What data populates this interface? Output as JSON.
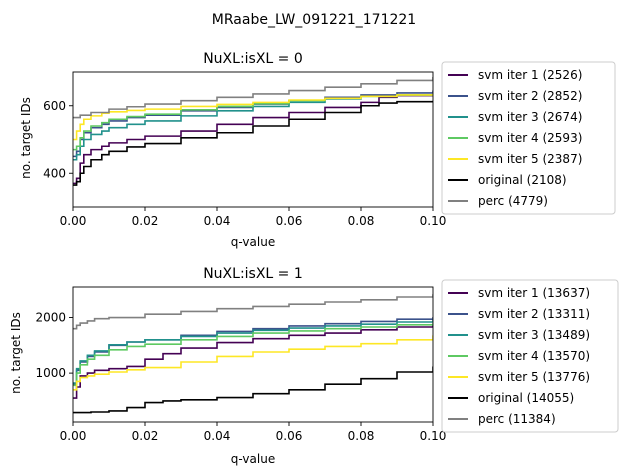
{
  "suptitle": "MRaabe_LW_091221_171221",
  "colors": {
    "svm_iter_1": "#440154",
    "svm_iter_2": "#3b528b",
    "svm_iter_3": "#21918c",
    "svm_iter_4": "#5ec962",
    "svm_iter_5": "#fde725",
    "original": "#000000",
    "perc": "#808080"
  },
  "chart_data": [
    {
      "type": "line",
      "title": "NuXL:isXL = 0",
      "xlabel": "q-value",
      "ylabel": "no. target IDs",
      "xlim": [
        0,
        0.1
      ],
      "ylim": [
        300,
        700
      ],
      "xticks": [
        "0.00",
        "0.02",
        "0.04",
        "0.06",
        "0.08",
        "0.10"
      ],
      "xtick_values": [
        0,
        0.02,
        0.04,
        0.06,
        0.08,
        0.1
      ],
      "yticks": [
        "400",
        "600"
      ],
      "ytick_values": [
        400,
        600
      ],
      "legend_position": "outside right",
      "series": [
        {
          "name": "svm iter 1 (2526)",
          "color_key": "svm_iter_1",
          "x": [
            0,
            0.001,
            0.002,
            0.003,
            0.005,
            0.008,
            0.01,
            0.015,
            0.02,
            0.03,
            0.04,
            0.05,
            0.06,
            0.07,
            0.08,
            0.085,
            0.09,
            0.1
          ],
          "y": [
            370,
            385,
            430,
            455,
            470,
            480,
            490,
            500,
            510,
            525,
            545,
            565,
            580,
            595,
            610,
            625,
            630,
            635
          ]
        },
        {
          "name": "svm iter 2 (2852)",
          "color_key": "svm_iter_2",
          "x": [
            0,
            0.001,
            0.002,
            0.003,
            0.005,
            0.008,
            0.01,
            0.015,
            0.02,
            0.03,
            0.04,
            0.05,
            0.06,
            0.07,
            0.08,
            0.09,
            0.1
          ],
          "y": [
            450,
            465,
            500,
            520,
            535,
            545,
            555,
            565,
            572,
            585,
            595,
            605,
            615,
            625,
            632,
            638,
            645
          ]
        },
        {
          "name": "svm iter 3 (2674)",
          "color_key": "svm_iter_3",
          "x": [
            0,
            0.001,
            0.002,
            0.003,
            0.005,
            0.008,
            0.01,
            0.015,
            0.02,
            0.03,
            0.04,
            0.05,
            0.06,
            0.07,
            0.08,
            0.09,
            0.1
          ],
          "y": [
            440,
            455,
            480,
            500,
            515,
            525,
            535,
            545,
            555,
            570,
            585,
            598,
            610,
            620,
            628,
            632,
            635
          ]
        },
        {
          "name": "svm iter 4 (2593)",
          "color_key": "svm_iter_4",
          "x": [
            0,
            0.001,
            0.002,
            0.003,
            0.005,
            0.008,
            0.01,
            0.015,
            0.02,
            0.03,
            0.04,
            0.05,
            0.06,
            0.07,
            0.08,
            0.09,
            0.1
          ],
          "y": [
            470,
            480,
            505,
            525,
            540,
            550,
            560,
            568,
            575,
            588,
            598,
            606,
            615,
            622,
            628,
            632,
            635
          ]
        },
        {
          "name": "svm iter 5 (2387)",
          "color_key": "svm_iter_5",
          "x": [
            0,
            0.001,
            0.002,
            0.003,
            0.005,
            0.008,
            0.01,
            0.015,
            0.02,
            0.03,
            0.04,
            0.05,
            0.06,
            0.07,
            0.08,
            0.09,
            0.1
          ],
          "y": [
            500,
            525,
            545,
            560,
            570,
            578,
            582,
            586,
            590,
            598,
            604,
            610,
            617,
            622,
            628,
            632,
            636
          ]
        },
        {
          "name": "original (2108)",
          "color_key": "original",
          "x": [
            0,
            0.001,
            0.002,
            0.003,
            0.005,
            0.008,
            0.01,
            0.015,
            0.02,
            0.03,
            0.04,
            0.05,
            0.06,
            0.07,
            0.08,
            0.085,
            0.09,
            0.1
          ],
          "y": [
            365,
            375,
            400,
            420,
            440,
            455,
            465,
            478,
            488,
            505,
            520,
            540,
            560,
            580,
            600,
            608,
            612,
            615
          ]
        },
        {
          "name": "perc (4779)",
          "color_key": "perc",
          "x": [
            0,
            0.002,
            0.005,
            0.01,
            0.015,
            0.02,
            0.03,
            0.04,
            0.05,
            0.06,
            0.07,
            0.08,
            0.09,
            0.1
          ],
          "y": [
            565,
            572,
            580,
            590,
            597,
            605,
            615,
            625,
            635,
            645,
            655,
            665,
            675,
            685
          ]
        }
      ]
    },
    {
      "type": "line",
      "title": "NuXL:isXL = 1",
      "xlabel": "q-value",
      "ylabel": "no. target IDs",
      "xlim": [
        0,
        0.1
      ],
      "ylim": [
        120,
        2550
      ],
      "xticks": [
        "0.00",
        "0.02",
        "0.04",
        "0.06",
        "0.08",
        "0.10"
      ],
      "xtick_values": [
        0,
        0.02,
        0.04,
        0.06,
        0.08,
        0.1
      ],
      "yticks": [
        "1000",
        "2000"
      ],
      "ytick_values": [
        1000,
        2000
      ],
      "legend_position": "outside right",
      "series": [
        {
          "name": "svm iter 1 (13637)",
          "color_key": "svm_iter_1",
          "x": [
            0,
            0.001,
            0.002,
            0.004,
            0.006,
            0.01,
            0.015,
            0.02,
            0.025,
            0.03,
            0.04,
            0.05,
            0.06,
            0.07,
            0.08,
            0.09,
            0.1
          ],
          "y": [
            550,
            750,
            950,
            1000,
            1050,
            1080,
            1120,
            1250,
            1350,
            1450,
            1550,
            1620,
            1680,
            1720,
            1780,
            1830,
            1880
          ]
        },
        {
          "name": "svm iter 2 (13311)",
          "color_key": "svm_iter_2",
          "x": [
            0,
            0.001,
            0.002,
            0.004,
            0.006,
            0.01,
            0.015,
            0.02,
            0.03,
            0.04,
            0.05,
            0.06,
            0.07,
            0.08,
            0.09,
            0.1
          ],
          "y": [
            800,
            1050,
            1200,
            1300,
            1380,
            1500,
            1560,
            1600,
            1680,
            1750,
            1800,
            1850,
            1890,
            1930,
            1970,
            2010
          ]
        },
        {
          "name": "svm iter 3 (13489)",
          "color_key": "svm_iter_3",
          "x": [
            0,
            0.001,
            0.002,
            0.004,
            0.006,
            0.01,
            0.015,
            0.02,
            0.03,
            0.04,
            0.05,
            0.06,
            0.07,
            0.08,
            0.09,
            0.1
          ],
          "y": [
            820,
            1080,
            1220,
            1320,
            1400,
            1510,
            1560,
            1600,
            1660,
            1720,
            1770,
            1810,
            1850,
            1880,
            1920,
            1960
          ]
        },
        {
          "name": "svm iter 4 (13570)",
          "color_key": "svm_iter_4",
          "x": [
            0,
            0.001,
            0.002,
            0.004,
            0.006,
            0.01,
            0.015,
            0.02,
            0.03,
            0.04,
            0.05,
            0.06,
            0.07,
            0.08,
            0.09,
            0.1
          ],
          "y": [
            780,
            1000,
            1150,
            1250,
            1320,
            1420,
            1480,
            1520,
            1600,
            1660,
            1720,
            1760,
            1800,
            1830,
            1870,
            1900
          ]
        },
        {
          "name": "svm iter 5 (13776)",
          "color_key": "svm_iter_5",
          "x": [
            0,
            0.001,
            0.002,
            0.004,
            0.006,
            0.01,
            0.015,
            0.02,
            0.03,
            0.04,
            0.05,
            0.06,
            0.07,
            0.08,
            0.09,
            0.1
          ],
          "y": [
            700,
            850,
            920,
            950,
            980,
            1020,
            1060,
            1100,
            1200,
            1300,
            1380,
            1430,
            1480,
            1530,
            1600,
            1680
          ]
        },
        {
          "name": "original (14055)",
          "color_key": "original",
          "x": [
            0,
            0.005,
            0.01,
            0.015,
            0.02,
            0.025,
            0.03,
            0.04,
            0.05,
            0.06,
            0.07,
            0.08,
            0.09,
            0.1
          ],
          "y": [
            290,
            300,
            320,
            380,
            470,
            500,
            520,
            560,
            630,
            700,
            800,
            900,
            1020,
            1120
          ]
        },
        {
          "name": "perc (11384)",
          "color_key": "perc",
          "x": [
            0,
            0.001,
            0.002,
            0.004,
            0.006,
            0.01,
            0.02,
            0.03,
            0.04,
            0.05,
            0.06,
            0.07,
            0.08,
            0.09,
            0.1
          ],
          "y": [
            1800,
            1860,
            1900,
            1940,
            1980,
            2000,
            2060,
            2110,
            2160,
            2200,
            2240,
            2280,
            2320,
            2370,
            2420
          ]
        }
      ]
    }
  ]
}
